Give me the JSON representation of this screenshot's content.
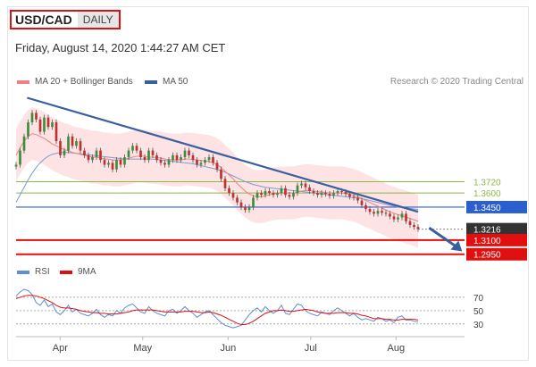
{
  "header": {
    "symbol": "USD/CAD",
    "timeframe": "DAILY",
    "datetime": "Friday, August 14, 2020 1:44:27 AM CET"
  },
  "legend": {
    "ma20_label": "MA 20 + Bollinger Bands",
    "ma50_label": "MA 50",
    "credit": "Research © 2020 Trading Central"
  },
  "rsi_legend": {
    "rsi_label": "RSI",
    "ma_label": "9MA"
  },
  "colors": {
    "ma20": "#f08080",
    "ma50": "#3a5fa0",
    "bands_fill": "#fde3e3",
    "resistance": "#8ab84a",
    "pivot": "#2b5ecf",
    "support": "#e01010",
    "last": "#333333",
    "rsi": "#5b8fd6",
    "rsi_ma": "#e01010"
  },
  "chart_data": {
    "type": "candlestick",
    "x_labels": [
      "Apr",
      "May",
      "Jun",
      "Jul",
      "Aug"
    ],
    "x_label_days": [
      16,
      46,
      77,
      107,
      138
    ],
    "ylim": [
      1.29,
      1.47
    ],
    "last_price": 1.3216,
    "levels": {
      "resistance": [
        1.372,
        1.36
      ],
      "pivot": 1.345,
      "support": [
        1.31,
        1.295
      ]
    },
    "level_labels": {
      "r2": "1.3720",
      "r1": "1.3600",
      "pivot": "1.3450",
      "last": "1.3216",
      "s1": "1.3100",
      "s2": "1.2950"
    },
    "trendline": [
      [
        4,
        1.461
      ],
      [
        146,
        1.34
      ]
    ],
    "projection_arrow": [
      [
        150,
        1.323
      ],
      [
        162,
        1.298
      ]
    ],
    "close": [
      1.39,
      1.405,
      1.42,
      1.435,
      1.445,
      1.438,
      1.425,
      1.44,
      1.43,
      1.435,
      1.415,
      1.4,
      1.405,
      1.42,
      1.41,
      1.415,
      1.405,
      1.4,
      1.395,
      1.398,
      1.405,
      1.395,
      1.39,
      1.392,
      1.385,
      1.395,
      1.39,
      1.398,
      1.405,
      1.41,
      1.405,
      1.398,
      1.395,
      1.405,
      1.4,
      1.395,
      1.392,
      1.39,
      1.395,
      1.4,
      1.395,
      1.398,
      1.405,
      1.4,
      1.395,
      1.39,
      1.392,
      1.395,
      1.398,
      1.392,
      1.385,
      1.375,
      1.365,
      1.36,
      1.355,
      1.35,
      1.345,
      1.342,
      1.345,
      1.355,
      1.36,
      1.358,
      1.362,
      1.36,
      1.358,
      1.36,
      1.365,
      1.358,
      1.356,
      1.36,
      1.368,
      1.37,
      1.366,
      1.362,
      1.36,
      1.358,
      1.36,
      1.359,
      1.357,
      1.36,
      1.362,
      1.361,
      1.359,
      1.356,
      1.355,
      1.352,
      1.347,
      1.343,
      1.34,
      1.338,
      1.341,
      1.339,
      1.338,
      1.335,
      1.332,
      1.334,
      1.338,
      1.33,
      1.326,
      1.324,
      1.3216
    ],
    "ma20": [
      1.4,
      1.408,
      1.415,
      1.42,
      1.423,
      1.422,
      1.42,
      1.418,
      1.415,
      1.412,
      1.41,
      1.408,
      1.406,
      1.405,
      1.403,
      1.402,
      1.401,
      1.4,
      1.399,
      1.398,
      1.398,
      1.397,
      1.396,
      1.396,
      1.395,
      1.395,
      1.395,
      1.396,
      1.397,
      1.398,
      1.399,
      1.399,
      1.399,
      1.398,
      1.398,
      1.3975,
      1.397,
      1.396,
      1.3955,
      1.395,
      1.395,
      1.395,
      1.396,
      1.396,
      1.3955,
      1.395,
      1.3945,
      1.394,
      1.3935,
      1.392,
      1.39,
      1.387,
      1.383,
      1.379,
      1.375,
      1.37,
      1.366,
      1.362,
      1.359,
      1.357,
      1.356,
      1.356,
      1.357,
      1.358,
      1.359,
      1.3595,
      1.36,
      1.36,
      1.36,
      1.36,
      1.361,
      1.362,
      1.3625,
      1.3625,
      1.362,
      1.3615,
      1.361,
      1.3605,
      1.36,
      1.36,
      1.36,
      1.36,
      1.3595,
      1.3585,
      1.3575,
      1.356,
      1.354,
      1.352,
      1.35,
      1.348,
      1.346,
      1.344,
      1.342,
      1.34,
      1.3385,
      1.337,
      1.336,
      1.3345,
      1.333,
      1.3315,
      1.33
    ],
    "ma50": [
      1.35,
      1.358,
      1.366,
      1.374,
      1.381,
      1.387,
      1.392,
      1.396,
      1.399,
      1.401,
      1.402,
      1.403,
      1.403,
      1.403,
      1.4025,
      1.402,
      1.4015,
      1.401,
      1.4005,
      1.4,
      1.3995,
      1.399,
      1.3985,
      1.398,
      1.3975,
      1.397,
      1.3965,
      1.396,
      1.396,
      1.396,
      1.396,
      1.396,
      1.396,
      1.396,
      1.396,
      1.3955,
      1.395,
      1.3945,
      1.394,
      1.3935,
      1.393,
      1.3925,
      1.392,
      1.3915,
      1.391,
      1.39,
      1.389,
      1.388,
      1.387,
      1.386,
      1.385,
      1.3835,
      1.382,
      1.38,
      1.378,
      1.376,
      1.374,
      1.372,
      1.3705,
      1.369,
      1.368,
      1.367,
      1.366,
      1.3655,
      1.365,
      1.3645,
      1.364,
      1.3635,
      1.363,
      1.3625,
      1.362,
      1.3615,
      1.361,
      1.3605,
      1.36,
      1.3595,
      1.359,
      1.3585,
      1.358,
      1.3575,
      1.357,
      1.3565,
      1.356,
      1.3555,
      1.355,
      1.3545,
      1.354,
      1.353,
      1.352,
      1.351,
      1.35,
      1.349,
      1.348,
      1.347,
      1.346,
      1.345,
      1.3445,
      1.344,
      1.3435,
      1.343,
      1.3425
    ],
    "band_width": 0.028,
    "rsi": {
      "ticks": [
        70,
        50,
        30
      ],
      "ylim": [
        15,
        90
      ],
      "rsi": [
        72,
        78,
        82,
        80,
        74,
        62,
        58,
        66,
        56,
        60,
        48,
        44,
        50,
        58,
        48,
        52,
        46,
        44,
        42,
        46,
        52,
        44,
        40,
        44,
        42,
        50,
        46,
        54,
        58,
        60,
        54,
        48,
        46,
        56,
        50,
        46,
        44,
        42,
        50,
        52,
        46,
        50,
        56,
        50,
        46,
        40,
        44,
        48,
        50,
        44,
        38,
        32,
        28,
        26,
        24,
        26,
        28,
        36,
        44,
        50,
        54,
        48,
        56,
        50,
        46,
        50,
        58,
        46,
        44,
        52,
        60,
        58,
        50,
        46,
        44,
        42,
        48,
        46,
        44,
        50,
        54,
        50,
        46,
        42,
        46,
        40,
        36,
        38,
        36,
        34,
        40,
        38,
        34,
        36,
        32,
        40,
        42,
        36,
        36,
        34,
        33
      ],
      "ma9": [
        68,
        70,
        72,
        73,
        73,
        72,
        70,
        68,
        65,
        62,
        58,
        55,
        54,
        54,
        53,
        52,
        50,
        49,
        48,
        47,
        47,
        46,
        46,
        45,
        45,
        45,
        46,
        47,
        48,
        50,
        51,
        51,
        51,
        51,
        51,
        50,
        49,
        48,
        48,
        48,
        48,
        48,
        49,
        49,
        49,
        48,
        47,
        47,
        48,
        47,
        45,
        43,
        40,
        37,
        34,
        31,
        29,
        29,
        31,
        34,
        38,
        42,
        46,
        48,
        50,
        50,
        51,
        50,
        49,
        49,
        50,
        51,
        52,
        51,
        50,
        48,
        47,
        46,
        46,
        46,
        47,
        47,
        47,
        46,
        46,
        45,
        43,
        42,
        40,
        38,
        38,
        38,
        37,
        37,
        36,
        36,
        37,
        37,
        37,
        37,
        36
      ]
    }
  }
}
